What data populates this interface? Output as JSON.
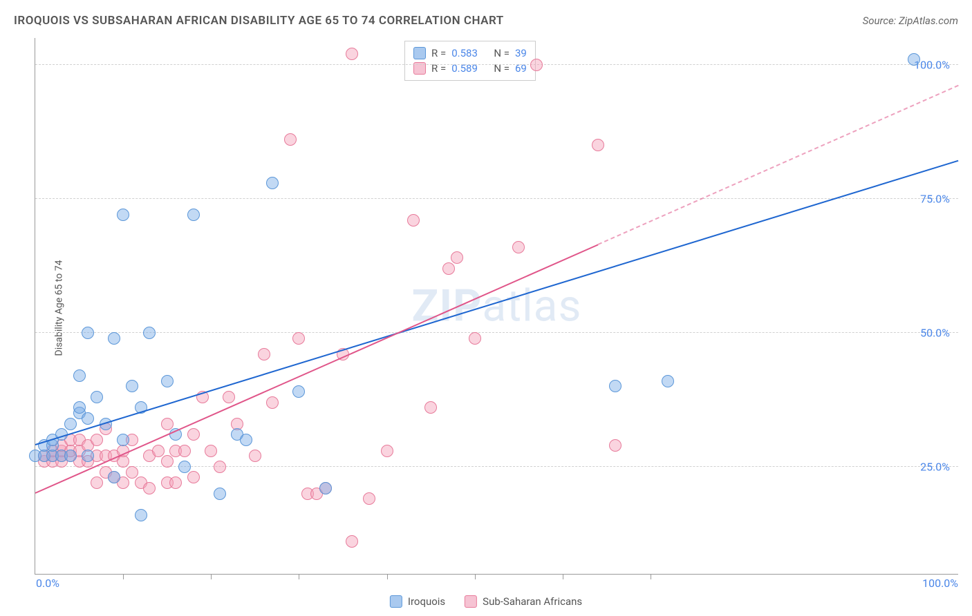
{
  "title": "IROQUOIS VS SUBSAHARAN AFRICAN DISABILITY AGE 65 TO 74 CORRELATION CHART",
  "source": "Source: ZipAtlas.com",
  "ylabel": "Disability Age 65 to 74",
  "watermark_bold": "ZIP",
  "watermark_rest": "atlas",
  "xmin": 0,
  "xmax": 105,
  "ymin": 5,
  "ymax": 105,
  "yticks": [
    {
      "v": 25,
      "label": "25.0%"
    },
    {
      "v": 50,
      "label": "50.0%"
    },
    {
      "v": 75,
      "label": "75.0%"
    },
    {
      "v": 100,
      "label": "100.0%"
    }
  ],
  "xlim_labels": {
    "left": "0.0%",
    "right": "100.0%"
  },
  "xticks": [
    10,
    20,
    30,
    40,
    50,
    60,
    70
  ],
  "series": {
    "blue": {
      "name": "Iroquois",
      "fill": "rgba(120,170,230,0.45)",
      "stroke": "#5a96d8",
      "line_color": "#1e66d0",
      "R": "0.583",
      "N": "39",
      "trend": {
        "x1": 0,
        "y1": 29,
        "x2": 105,
        "y2": 82,
        "solid_until_x": 105
      },
      "points": [
        [
          0,
          27
        ],
        [
          1,
          27
        ],
        [
          1,
          29
        ],
        [
          2,
          27
        ],
        [
          2,
          29
        ],
        [
          2,
          30
        ],
        [
          3,
          27
        ],
        [
          3,
          31
        ],
        [
          4,
          27
        ],
        [
          4,
          33
        ],
        [
          5,
          35
        ],
        [
          5,
          36
        ],
        [
          5,
          42
        ],
        [
          6,
          27
        ],
        [
          6,
          50
        ],
        [
          6,
          34
        ],
        [
          7,
          38
        ],
        [
          8,
          33
        ],
        [
          9,
          49
        ],
        [
          9,
          23
        ],
        [
          10,
          30
        ],
        [
          10,
          72
        ],
        [
          11,
          40
        ],
        [
          12,
          16
        ],
        [
          12,
          36
        ],
        [
          13,
          50
        ],
        [
          15,
          41
        ],
        [
          16,
          31
        ],
        [
          17,
          25
        ],
        [
          18,
          72
        ],
        [
          21,
          20
        ],
        [
          23,
          31
        ],
        [
          24,
          30
        ],
        [
          27,
          78
        ],
        [
          30,
          39
        ],
        [
          33,
          21
        ],
        [
          66,
          40
        ],
        [
          72,
          41
        ],
        [
          100,
          101
        ]
      ]
    },
    "pink": {
      "name": "Sub-Saharan Africans",
      "fill": "rgba(245,160,185,0.45)",
      "stroke": "#e77a9a",
      "line_color": "#e05589",
      "R": "0.589",
      "N": "69",
      "trend": {
        "x1": 0,
        "y1": 20,
        "x2": 105,
        "y2": 96,
        "solid_until_x": 64
      },
      "points": [
        [
          1,
          26
        ],
        [
          1,
          27
        ],
        [
          2,
          26
        ],
        [
          2,
          27
        ],
        [
          2,
          28
        ],
        [
          3,
          26
        ],
        [
          3,
          27
        ],
        [
          3,
          28
        ],
        [
          3,
          29
        ],
        [
          4,
          27
        ],
        [
          4,
          28
        ],
        [
          4,
          30
        ],
        [
          5,
          26
        ],
        [
          5,
          28
        ],
        [
          5,
          30
        ],
        [
          6,
          26
        ],
        [
          6,
          29
        ],
        [
          7,
          22
        ],
        [
          7,
          27
        ],
        [
          7,
          30
        ],
        [
          8,
          24
        ],
        [
          8,
          27
        ],
        [
          8,
          32
        ],
        [
          9,
          23
        ],
        [
          9,
          27
        ],
        [
          10,
          22
        ],
        [
          10,
          26
        ],
        [
          10,
          28
        ],
        [
          11,
          24
        ],
        [
          11,
          30
        ],
        [
          12,
          22
        ],
        [
          13,
          21
        ],
        [
          13,
          27
        ],
        [
          14,
          28
        ],
        [
          15,
          22
        ],
        [
          15,
          26
        ],
        [
          15,
          33
        ],
        [
          16,
          22
        ],
        [
          16,
          28
        ],
        [
          17,
          28
        ],
        [
          18,
          23
        ],
        [
          18,
          31
        ],
        [
          19,
          38
        ],
        [
          20,
          28
        ],
        [
          21,
          25
        ],
        [
          22,
          38
        ],
        [
          23,
          33
        ],
        [
          25,
          27
        ],
        [
          26,
          46
        ],
        [
          27,
          37
        ],
        [
          29,
          86
        ],
        [
          30,
          49
        ],
        [
          31,
          20
        ],
        [
          32,
          20
        ],
        [
          33,
          21
        ],
        [
          35,
          46
        ],
        [
          36,
          102
        ],
        [
          36,
          11
        ],
        [
          38,
          19
        ],
        [
          40,
          28
        ],
        [
          43,
          71
        ],
        [
          45,
          36
        ],
        [
          47,
          62
        ],
        [
          48,
          64
        ],
        [
          50,
          49
        ],
        [
          55,
          66
        ],
        [
          57,
          100
        ],
        [
          64,
          85
        ],
        [
          66,
          29
        ]
      ]
    }
  },
  "stat_labels": {
    "R": "R =",
    "N": "N ="
  },
  "colors": {
    "blue_swatch_fill": "#a9c9ef",
    "blue_swatch_stroke": "#5a96d8",
    "pink_swatch_fill": "#f6c3d3",
    "pink_swatch_stroke": "#e77a9a",
    "title_color": "#555555",
    "source_color": "#666666",
    "axis_color": "#999999",
    "grid_color": "#d0d0d0",
    "tick_label_color": "#4a86e8"
  }
}
